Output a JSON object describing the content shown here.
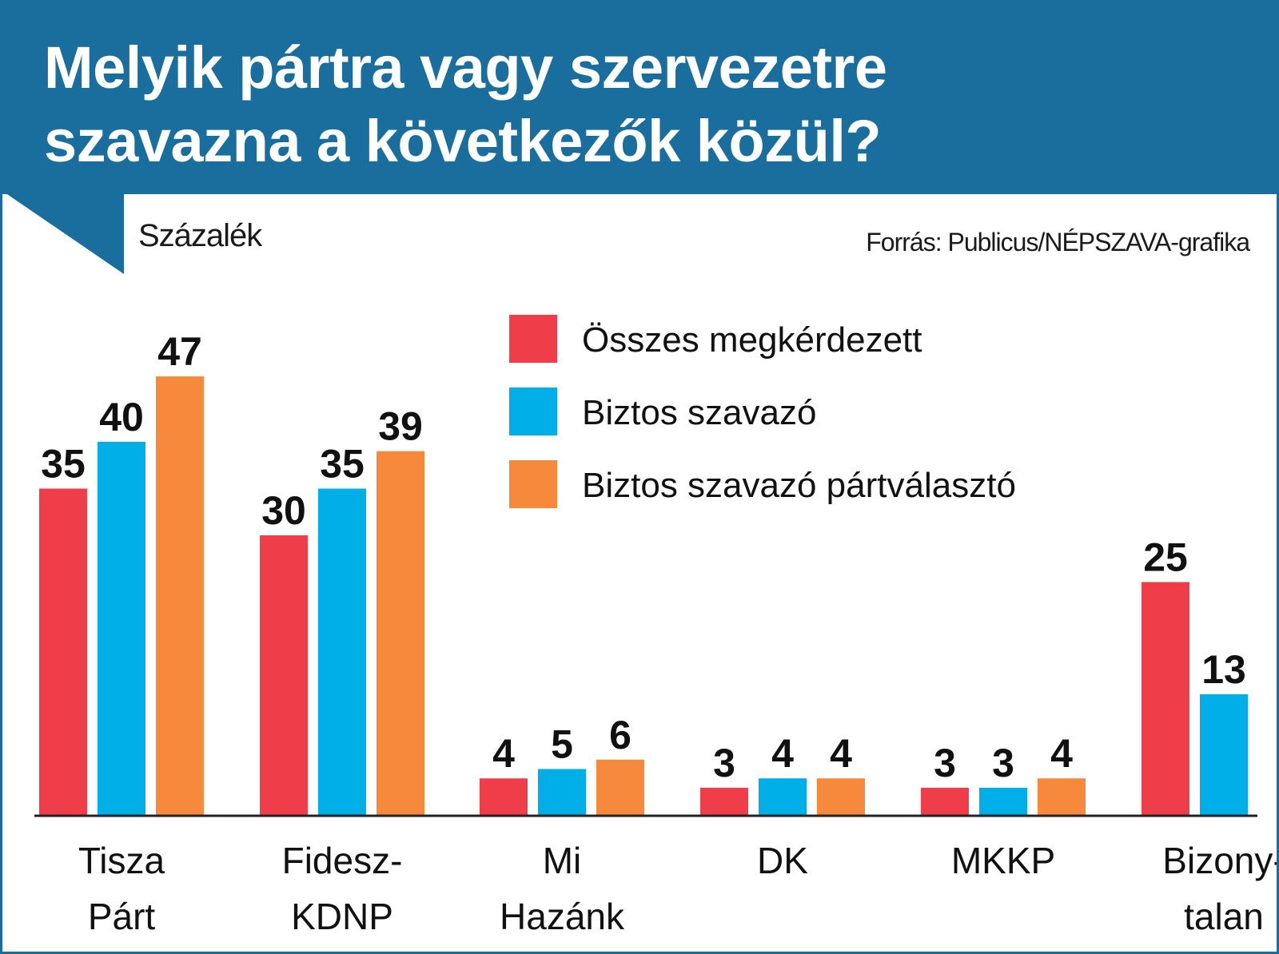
{
  "header": {
    "title_line1": "Melyik pártra vagy szervezetre",
    "title_line2": "szavazna a következők közül?"
  },
  "unit_label": "Százalék",
  "source": "Forrás: Publicus/NÉPSZAVA-grafika",
  "colors": {
    "header_bg": "#1a6e9e",
    "series_red": "#ef3e4a",
    "series_blue": "#00aee8",
    "series_orange": "#f7893c"
  },
  "chart_data": {
    "type": "bar",
    "categories": [
      [
        "Tisza",
        "Párt"
      ],
      [
        "Fidesz-",
        "KDNP"
      ],
      [
        "Mi",
        "Hazánk"
      ],
      [
        "DK"
      ],
      [
        "MKKP"
      ],
      [
        "Bizony-",
        "talan"
      ]
    ],
    "series": [
      {
        "name": "Összes megkérdezett",
        "color": "#ef3e4a",
        "values": [
          35,
          30,
          4,
          3,
          3,
          25
        ]
      },
      {
        "name": "Biztos szavazó",
        "color": "#00aee8",
        "values": [
          40,
          35,
          5,
          4,
          3,
          13
        ]
      },
      {
        "name": "Biztos szavazó pártválasztó",
        "color": "#f7893c",
        "values": [
          47,
          39,
          6,
          4,
          4,
          null
        ]
      }
    ],
    "ylim": [
      0,
      50
    ],
    "legend_position": "top-right",
    "grid": false,
    "data_labels": true
  }
}
